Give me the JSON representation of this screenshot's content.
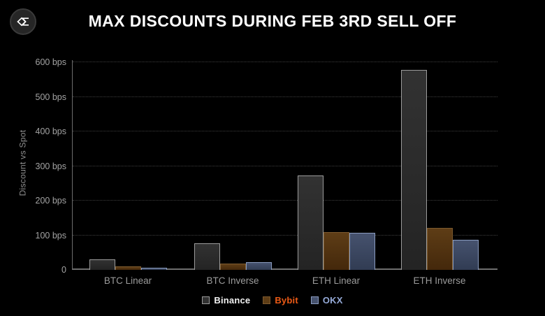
{
  "header": {
    "title": "MAX DISCOUNTS DURING FEB 3RD SELL OFF",
    "logo_icon": "sigma-diamond-icon"
  },
  "colors": {
    "background": "#000000",
    "title_text": "#ffffff",
    "axis": "#6e6e6e",
    "grid": "#3e3e3e",
    "tick_label": "#a3a3a3",
    "axis_title": "#8d8d8d"
  },
  "chart_data": {
    "type": "bar",
    "title": "MAX DISCOUNTS DURING FEB 3RD SELL OFF",
    "xlabel": "",
    "ylabel": "Discount vs Spot",
    "ylim": [
      0,
      600
    ],
    "ytick_step": 100,
    "ytick_suffix": " bps",
    "zero_label": "0",
    "grid": "horizontal-dotted",
    "legend_position": "bottom-center",
    "categories": [
      "BTC Linear",
      "BTC Inverse",
      "ETH Linear",
      "ETH Inverse"
    ],
    "series": [
      {
        "name": "Binance",
        "values": [
          30,
          77,
          273,
          578
        ],
        "fill_top": "#323232",
        "fill_bottom": "#242424",
        "border": "#9c9c9c",
        "label_color": "#f2f2f2"
      },
      {
        "name": "Bybit",
        "values": [
          11,
          19,
          110,
          122
        ],
        "fill_top": "#5e3d16",
        "fill_bottom": "#44280b",
        "border": "#7d5a2e",
        "label_color": "#ee5b16"
      },
      {
        "name": "OKX",
        "values": [
          7,
          23,
          107,
          86
        ],
        "fill_top": "#46526e",
        "fill_bottom": "#313c53",
        "border": "#8a9cc0",
        "label_color": "#96abd9"
      }
    ]
  }
}
